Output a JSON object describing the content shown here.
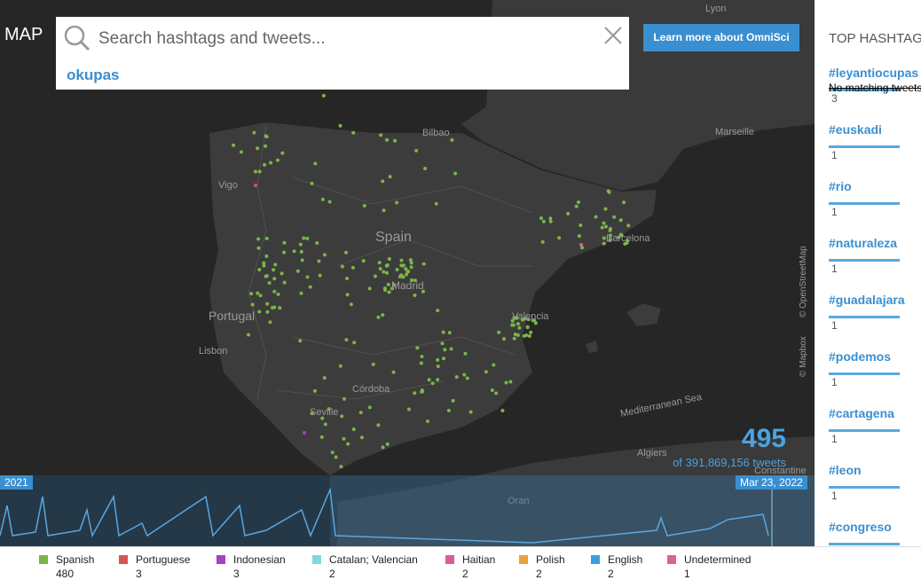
{
  "header": {
    "title": "MAP",
    "search_placeholder": "Search hashtags and tweets...",
    "search_suggestion": "okupas",
    "cta": "Learn more about OmniSci"
  },
  "map": {
    "labels": [
      "Lyon",
      "Marseille",
      "Bilbao",
      "Vigo",
      "Spain",
      "Barcelona",
      "Portugal",
      "Madrid",
      "Valencia",
      "Lisbon",
      "Córdoba",
      "Seville",
      "Mediterranean Sea",
      "Algiers",
      "Constantine",
      "Oran"
    ],
    "attribution": [
      "© OpenStreetMap",
      "© Mapbox"
    ]
  },
  "counter": {
    "count": 495,
    "total_label": "of 391,869,156 tweets"
  },
  "timeline": {
    "start": "2021",
    "end": "Mar 23, 2022"
  },
  "legend": [
    {
      "name": "Spanish",
      "count": 480,
      "color": "#7ab648"
    },
    {
      "name": "Portuguese",
      "count": 3,
      "color": "#d9534f"
    },
    {
      "name": "Indonesian",
      "count": 3,
      "color": "#a442c2"
    },
    {
      "name": "Catalan; Valencian",
      "count": 2,
      "color": "#80d8e0"
    },
    {
      "name": "Haitian",
      "count": 2,
      "color": "#e05a9a"
    },
    {
      "name": "Polish",
      "count": 2,
      "color": "#e8a23a"
    },
    {
      "name": "English",
      "count": 2,
      "color": "#3aa0dc"
    },
    {
      "name": "Undetermined",
      "count": 1,
      "color": "#e0609a"
    }
  ],
  "sidebar": {
    "title": "TOP HASHTAGS",
    "tooltip": "No matching tweets",
    "hashtags": [
      {
        "tag": "#leyantiocupas",
        "count": 3
      },
      {
        "tag": "#euskadi",
        "count": 1
      },
      {
        "tag": "#rio",
        "count": 1
      },
      {
        "tag": "#naturaleza",
        "count": 1
      },
      {
        "tag": "#guadalajara",
        "count": 1
      },
      {
        "tag": "#podemos",
        "count": 1
      },
      {
        "tag": "#cartagena",
        "count": 1
      },
      {
        "tag": "#leon",
        "count": 1
      },
      {
        "tag": "#congreso"
      }
    ]
  }
}
